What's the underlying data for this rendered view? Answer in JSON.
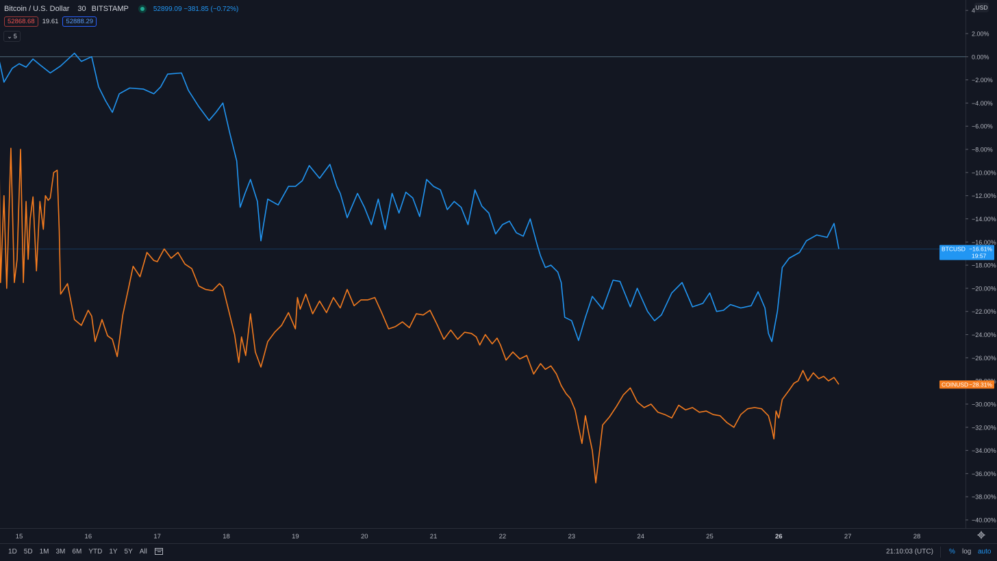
{
  "header": {
    "title": "Bitcoin / U.S. Dollar",
    "interval": "30",
    "exchange": "BITSTAMP",
    "quote": "52899.09  −381.85 (−0.72%)",
    "bid": "52868.68",
    "spread": "19.61",
    "ask": "52888.29",
    "collapse_count": "5",
    "currency": "USD"
  },
  "bottom": {
    "ranges": [
      "1D",
      "5D",
      "1M",
      "3M",
      "6M",
      "YTD",
      "1Y",
      "5Y",
      "All"
    ],
    "time": "21:10:03 (UTC)",
    "percent": "%",
    "log": "log",
    "auto": "auto"
  },
  "colors": {
    "background": "#131722",
    "btc": "#2196f3",
    "coin": "#f57c1f",
    "axis_text": "#b2b5be",
    "grid": "#2a2e39"
  },
  "chart_data": {
    "type": "line",
    "ylim": [
      -40,
      4
    ],
    "ytick_labels": [
      "4",
      "2.00%",
      "0.00%",
      "−2.00%",
      "−4.00%",
      "−6.00%",
      "−8.00%",
      "−10.00%",
      "−12.00%",
      "−14.00%",
      "−16.00%",
      "−18.00%",
      "−20.00%",
      "−22.00%",
      "−24.00%",
      "−26.00%",
      "−28.00%",
      "−30.00%",
      "−32.00%",
      "−34.00%",
      "−36.00%",
      "−38.00%",
      "−40.00%"
    ],
    "ytick_values": [
      4,
      2,
      0,
      -2,
      -4,
      -6,
      -8,
      -10,
      -12,
      -14,
      -16,
      -18,
      -20,
      -22,
      -24,
      -26,
      -28,
      -30,
      -32,
      -34,
      -36,
      -38,
      -40
    ],
    "x_labels": [
      "15",
      "16",
      "17",
      "18",
      "19",
      "20",
      "21",
      "22",
      "23",
      "24",
      "25",
      "26",
      "27",
      "28"
    ],
    "x_positions": [
      15,
      16,
      17,
      18,
      19,
      20,
      21,
      22,
      23,
      24,
      25,
      26,
      27,
      28
    ],
    "bold_x_labels": [
      "26"
    ],
    "xlim": [
      14.7,
      28.7
    ],
    "series": [
      {
        "name": "BTCUSD",
        "color": "#2196f3",
        "last_label": "−16.61%",
        "last_time": "19:57",
        "last_value": -16.61,
        "x": [
          14.7,
          14.78,
          14.9,
          15.0,
          15.1,
          15.2,
          15.3,
          15.45,
          15.6,
          15.8,
          15.9,
          16.05,
          16.15,
          16.25,
          16.35,
          16.45,
          16.6,
          16.8,
          16.95,
          17.05,
          17.15,
          17.35,
          17.45,
          17.6,
          17.75,
          17.85,
          17.95,
          18.05,
          18.15,
          18.2,
          18.27,
          18.35,
          18.45,
          18.5,
          18.6,
          18.75,
          18.9,
          19.0,
          19.1,
          19.2,
          19.35,
          19.5,
          19.6,
          19.65,
          19.75,
          19.9,
          20.0,
          20.1,
          20.2,
          20.3,
          20.4,
          20.5,
          20.6,
          20.7,
          20.8,
          20.9,
          21.0,
          21.1,
          21.2,
          21.3,
          21.4,
          21.5,
          21.6,
          21.7,
          21.8,
          21.9,
          22.0,
          22.1,
          22.2,
          22.3,
          22.4,
          22.5,
          22.55,
          22.62,
          22.7,
          22.8,
          22.85,
          22.9,
          23.0,
          23.1,
          23.2,
          23.3,
          23.45,
          23.6,
          23.7,
          23.85,
          23.95,
          24.1,
          24.2,
          24.3,
          24.45,
          24.6,
          24.75,
          24.9,
          25.0,
          25.1,
          25.2,
          25.3,
          25.45,
          25.6,
          25.7,
          25.8,
          25.85,
          25.9,
          25.98,
          26.05,
          26.15,
          26.3,
          26.4,
          26.55,
          26.7,
          26.8,
          26.87
        ],
        "y": [
          0.0,
          -2.2,
          -1.0,
          -0.6,
          -0.9,
          -0.2,
          -0.7,
          -1.4,
          -0.8,
          0.3,
          -0.4,
          0.0,
          -2.6,
          -3.8,
          -4.8,
          -3.2,
          -2.7,
          -2.8,
          -3.2,
          -2.6,
          -1.5,
          -1.4,
          -2.9,
          -4.3,
          -5.5,
          -4.8,
          -4.0,
          -6.6,
          -9.0,
          -13.0,
          -11.8,
          -10.6,
          -12.5,
          -15.9,
          -12.3,
          -12.8,
          -11.2,
          -11.2,
          -10.7,
          -9.4,
          -10.5,
          -9.3,
          -11.2,
          -11.8,
          -13.9,
          -11.8,
          -13.0,
          -14.5,
          -12.3,
          -14.9,
          -11.8,
          -13.5,
          -11.7,
          -12.2,
          -13.8,
          -10.6,
          -11.2,
          -11.5,
          -13.2,
          -12.5,
          -13.0,
          -14.5,
          -11.5,
          -12.9,
          -13.5,
          -15.3,
          -14.5,
          -14.2,
          -15.2,
          -15.5,
          -14.0,
          -16.2,
          -17.2,
          -18.2,
          -18.0,
          -18.6,
          -19.5,
          -22.5,
          -22.8,
          -24.5,
          -22.5,
          -20.7,
          -21.8,
          -19.3,
          -19.4,
          -21.6,
          -20.0,
          -22.0,
          -22.8,
          -22.3,
          -20.4,
          -19.5,
          -21.6,
          -21.3,
          -20.4,
          -22.0,
          -21.9,
          -21.4,
          -21.7,
          -21.5,
          -20.3,
          -21.7,
          -23.9,
          -24.6,
          -22.0,
          -18.2,
          -17.4,
          -16.9,
          -15.9,
          -15.4,
          -15.6,
          -14.4,
          -16.6
        ]
      },
      {
        "name": "COINUSD",
        "color": "#f57c1f",
        "last_label": "−28.31%",
        "last_value": -28.31,
        "x": [
          14.7,
          14.73,
          14.78,
          14.82,
          14.88,
          14.93,
          14.97,
          15.02,
          15.06,
          15.1,
          15.13,
          15.16,
          15.2,
          15.25,
          15.3,
          15.35,
          15.38,
          15.42,
          15.45,
          15.5,
          15.55,
          15.58,
          15.6,
          15.7,
          15.8,
          15.9,
          16.0,
          16.05,
          16.1,
          16.2,
          16.28,
          16.35,
          16.42,
          16.5,
          16.58,
          16.65,
          16.75,
          16.85,
          16.95,
          17.0,
          17.1,
          17.2,
          17.3,
          17.4,
          17.5,
          17.6,
          17.7,
          17.8,
          17.9,
          17.95,
          18.05,
          18.12,
          18.18,
          18.22,
          18.28,
          18.35,
          18.42,
          18.5,
          18.6,
          18.7,
          18.8,
          18.9,
          19.0,
          19.03,
          19.07,
          19.15,
          19.25,
          19.35,
          19.45,
          19.55,
          19.65,
          19.75,
          19.85,
          19.95,
          20.05,
          20.15,
          20.25,
          20.35,
          20.45,
          20.55,
          20.65,
          20.75,
          20.85,
          20.95,
          21.05,
          21.15,
          21.25,
          21.35,
          21.45,
          21.55,
          21.62,
          21.67,
          21.75,
          21.85,
          21.92,
          21.97,
          22.05,
          22.15,
          22.25,
          22.35,
          22.45,
          22.55,
          22.62,
          22.7,
          22.78,
          22.85,
          22.92,
          22.98,
          23.05,
          23.1,
          23.15,
          23.2,
          23.25,
          23.3,
          23.35,
          23.45,
          23.55,
          23.65,
          23.75,
          23.85,
          23.95,
          24.05,
          24.15,
          24.25,
          24.35,
          24.45,
          24.55,
          24.65,
          24.75,
          24.85,
          24.95,
          25.05,
          25.15,
          25.25,
          25.35,
          25.45,
          25.55,
          25.65,
          25.75,
          25.85,
          25.9,
          25.93,
          25.96,
          26.0,
          26.05,
          26.15,
          26.22,
          26.28,
          26.35,
          26.42,
          26.5,
          26.58,
          26.65,
          26.72,
          26.8,
          26.87
        ],
        "y": [
          -2.0,
          -19.5,
          -12.0,
          -20.0,
          -7.9,
          -19.5,
          -17.5,
          -8.0,
          -19.5,
          -12.5,
          -17.5,
          -14.0,
          -12.1,
          -18.5,
          -12.5,
          -14.9,
          -12.0,
          -12.4,
          -12.2,
          -10.0,
          -9.8,
          -15.0,
          -20.5,
          -19.6,
          -22.7,
          -23.2,
          -21.9,
          -22.4,
          -24.6,
          -22.7,
          -24.1,
          -24.4,
          -25.9,
          -22.3,
          -20.1,
          -18.1,
          -19.0,
          -16.9,
          -17.6,
          -17.7,
          -16.6,
          -17.4,
          -16.9,
          -17.9,
          -18.3,
          -19.8,
          -20.1,
          -20.2,
          -19.6,
          -19.9,
          -22.3,
          -24.0,
          -26.4,
          -24.2,
          -25.8,
          -22.2,
          -25.5,
          -26.8,
          -24.6,
          -23.8,
          -23.2,
          -22.1,
          -23.5,
          -20.8,
          -21.8,
          -20.5,
          -22.2,
          -21.1,
          -22.1,
          -20.8,
          -21.7,
          -20.1,
          -21.5,
          -21.0,
          -21.0,
          -20.8,
          -22.1,
          -23.5,
          -23.3,
          -22.9,
          -23.4,
          -22.2,
          -22.3,
          -21.9,
          -23.1,
          -24.4,
          -23.6,
          -24.4,
          -23.8,
          -23.9,
          -24.2,
          -24.9,
          -24.0,
          -24.8,
          -24.3,
          -24.9,
          -26.2,
          -25.5,
          -26.1,
          -25.8,
          -27.4,
          -26.5,
          -27.0,
          -26.7,
          -27.4,
          -28.4,
          -29.1,
          -29.5,
          -30.5,
          -32.0,
          -33.4,
          -31.0,
          -32.6,
          -34.0,
          -36.8,
          -31.8,
          -31.1,
          -30.2,
          -29.2,
          -28.6,
          -29.8,
          -30.3,
          -30.0,
          -30.7,
          -30.9,
          -31.2,
          -30.1,
          -30.5,
          -30.3,
          -30.7,
          -30.6,
          -30.9,
          -31.0,
          -31.6,
          -32.0,
          -30.9,
          -30.4,
          -30.3,
          -30.4,
          -31.0,
          -32.1,
          -33.0,
          -30.6,
          -31.2,
          -29.6,
          -28.8,
          -28.2,
          -28.0,
          -27.1,
          -28.0,
          -27.3,
          -27.8,
          -27.6,
          -28.0,
          -27.7,
          -28.3
        ]
      }
    ]
  }
}
